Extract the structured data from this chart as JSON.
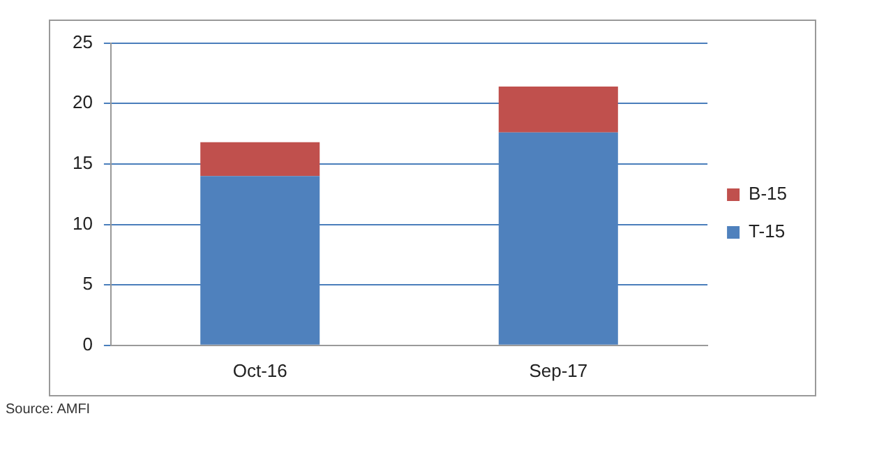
{
  "chart_data": {
    "type": "bar",
    "stacked": true,
    "categories": [
      "Oct-16",
      "Sep-17"
    ],
    "series": [
      {
        "name": "T-15",
        "color": "#4f81bd",
        "values": [
          14.0,
          17.6
        ]
      },
      {
        "name": "B-15",
        "color": "#c0504d",
        "values": [
          2.8,
          3.8
        ]
      }
    ],
    "ylim": [
      0,
      25
    ],
    "yticks": [
      0,
      5,
      10,
      15,
      20,
      25
    ],
    "grid": "y",
    "legend": "right",
    "annotations": [
      "Source: AMFI"
    ]
  }
}
